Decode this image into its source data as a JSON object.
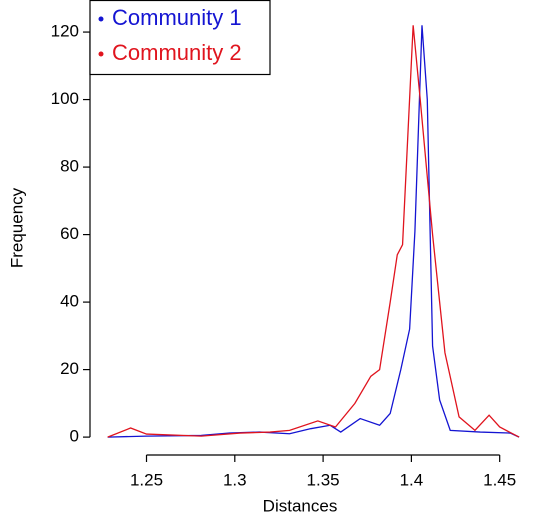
{
  "chart_data": {
    "type": "line",
    "xlabel": "Distances",
    "ylabel": "Frequency",
    "xlim": [
      1.218,
      1.47
    ],
    "ylim": [
      -5.3,
      129.5
    ],
    "xticks": [
      1.25,
      1.3,
      1.35,
      1.4,
      1.45
    ],
    "yticks": [
      0,
      20,
      40,
      60,
      80,
      100,
      120
    ],
    "legend": "top-left",
    "series": [
      {
        "name": "Community 1",
        "color": "#1414d2",
        "x": [
          1.228,
          1.25,
          1.281,
          1.297,
          1.314,
          1.331,
          1.343,
          1.354,
          1.36,
          1.371,
          1.382,
          1.388,
          1.394,
          1.399,
          1.402,
          1.406,
          1.409,
          1.412,
          1.416,
          1.422,
          1.439,
          1.456,
          1.461
        ],
        "values": [
          0,
          0.3,
          0.5,
          1.2,
          1.5,
          1,
          2.5,
          3.5,
          1.5,
          5.5,
          3.5,
          7,
          20,
          32,
          61,
          122,
          100,
          27,
          11,
          2,
          1.5,
          1.2,
          0
        ]
      },
      {
        "name": "Community 2",
        "color": "#e0141e",
        "x": [
          1.228,
          1.241,
          1.25,
          1.281,
          1.303,
          1.32,
          1.331,
          1.347,
          1.357,
          1.368,
          1.377,
          1.382,
          1.388,
          1.392,
          1.395,
          1.401,
          1.405,
          1.412,
          1.419,
          1.427,
          1.436,
          1.444,
          1.45,
          1.461
        ],
        "values": [
          0,
          2.7,
          0.9,
          0.3,
          1.2,
          1.5,
          2,
          4.8,
          3,
          10,
          18,
          20,
          40,
          54,
          57,
          122,
          100,
          60,
          25,
          6,
          2,
          6.5,
          3,
          0
        ]
      }
    ]
  }
}
